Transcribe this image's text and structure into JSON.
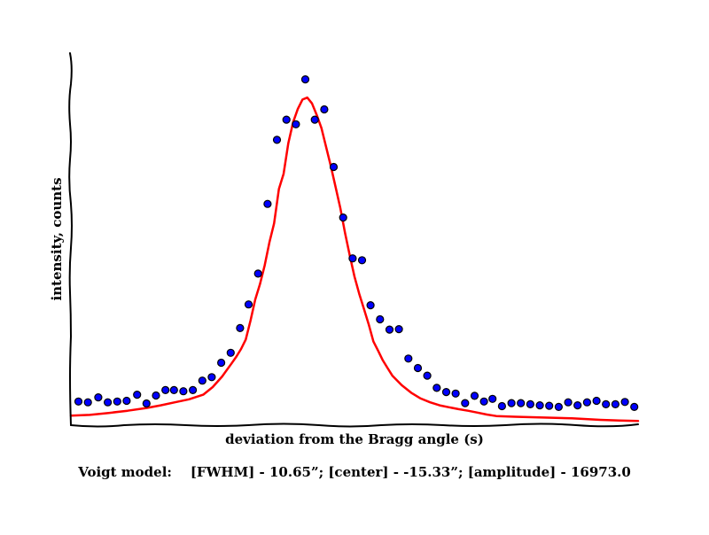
{
  "chart_data": {
    "type": "scatter",
    "title": "",
    "xlabel": "deviation from the Bragg angle (s)",
    "ylabel": "intensity, counts",
    "caption": "Voigt model:    [FWHM] - 10.65”; [center] - -15.33”; [amplitude] - 16973.0",
    "x_ticks": false,
    "y_ticks": false,
    "grid": false,
    "legend": "none",
    "xlim": [
      0,
      60
    ],
    "ylim": [
      0,
      1000
    ],
    "series": [
      {
        "kind": "points",
        "color": "#0000ff",
        "x": [
          0.8,
          1.8,
          2.9,
          3.9,
          4.9,
          5.9,
          7.0,
          8.0,
          9.0,
          10.0,
          10.9,
          11.9,
          12.9,
          13.9,
          14.9,
          15.9,
          16.9,
          17.9,
          18.8,
          19.8,
          20.8,
          21.8,
          22.8,
          23.8,
          24.8,
          25.8,
          26.8,
          27.8,
          28.8,
          29.8,
          30.8,
          31.7,
          32.7,
          33.7,
          34.7,
          35.7,
          36.7,
          37.7,
          38.7,
          39.7,
          40.7,
          41.7,
          42.7,
          43.7,
          44.6,
          45.6,
          46.6,
          47.6,
          48.6,
          49.6,
          50.6,
          51.6,
          52.6,
          53.6,
          54.6,
          55.6,
          56.6,
          57.6,
          58.6,
          59.6
        ],
        "y": [
          62,
          60,
          73,
          60,
          62,
          64,
          80,
          57,
          78,
          92,
          92,
          89,
          92,
          117,
          126,
          164,
          190,
          255,
          317,
          398,
          581,
          749,
          802,
          790,
          908,
          802,
          829,
          678,
          545,
          438,
          433,
          315,
          278,
          251,
          252,
          175,
          150,
          130,
          98,
          87,
          83,
          58,
          77,
          62,
          69,
          50,
          58,
          58,
          55,
          52,
          51,
          48,
          60,
          52,
          60,
          64,
          55,
          55,
          61,
          48
        ]
      },
      {
        "kind": "line",
        "color": "#ff0000",
        "x": [
          0,
          2,
          4,
          6,
          8,
          9.5,
          11,
          12.5,
          14,
          15,
          16,
          17,
          17.5,
          18,
          18.5,
          19,
          19.5,
          20,
          20.5,
          21,
          21.5,
          22,
          22.5,
          23,
          23.5,
          24,
          24.5,
          25,
          25.5,
          26,
          26.5,
          27,
          27.5,
          28,
          28.5,
          29,
          29.5,
          30,
          30.5,
          31,
          31.5,
          32,
          32.5,
          33,
          33.5,
          34,
          35,
          36,
          37,
          38,
          39,
          40,
          41,
          42,
          43,
          44,
          45,
          47,
          50,
          53,
          56,
          58,
          60
        ],
        "y": [
          25,
          27,
          32,
          38,
          45,
          52,
          60,
          68,
          80,
          100,
          128,
          162,
          180,
          200,
          225,
          275,
          330,
          370,
          420,
          480,
          530,
          620,
          660,
          740,
          795,
          830,
          855,
          860,
          845,
          815,
          780,
          730,
          680,
          625,
          570,
          505,
          445,
          390,
          345,
          305,
          265,
          220,
          195,
          170,
          150,
          130,
          105,
          85,
          70,
          60,
          52,
          47,
          42,
          38,
          33,
          28,
          24,
          22,
          20,
          18,
          14,
          12,
          11
        ]
      }
    ]
  }
}
